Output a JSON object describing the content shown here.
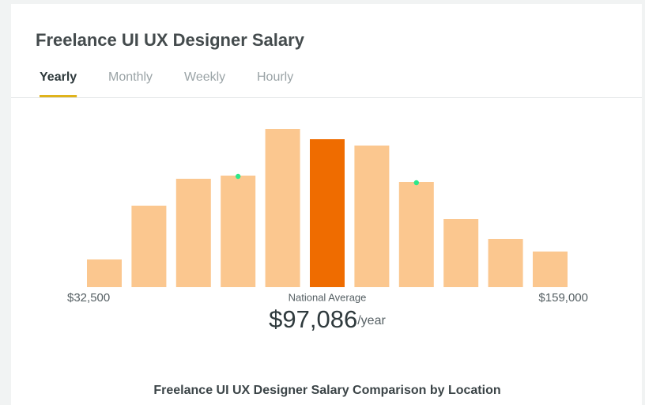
{
  "header": {
    "title": "Freelance UI UX Designer Salary"
  },
  "tabs": [
    "Yearly",
    "Monthly",
    "Weekly",
    "Hourly"
  ],
  "active_tab": 0,
  "chart_data": {
    "type": "bar",
    "values": [
      35,
      103,
      137,
      141,
      200,
      187,
      179,
      133,
      86,
      61,
      45
    ],
    "ylim": [
      0,
      200
    ],
    "color": "#fbc78f",
    "highlight_index": 5,
    "highlight_color": "#ef6c00",
    "marker_indices": [
      3,
      7
    ],
    "marker_color": "#2ee88a",
    "min_label": "$32,500",
    "max_label": "$159,000",
    "average_caption": "National Average",
    "average_value": "$97,086",
    "average_unit": "/year"
  },
  "footer": {
    "heading": "Freelance UI UX Designer Salary Comparison by Location"
  }
}
